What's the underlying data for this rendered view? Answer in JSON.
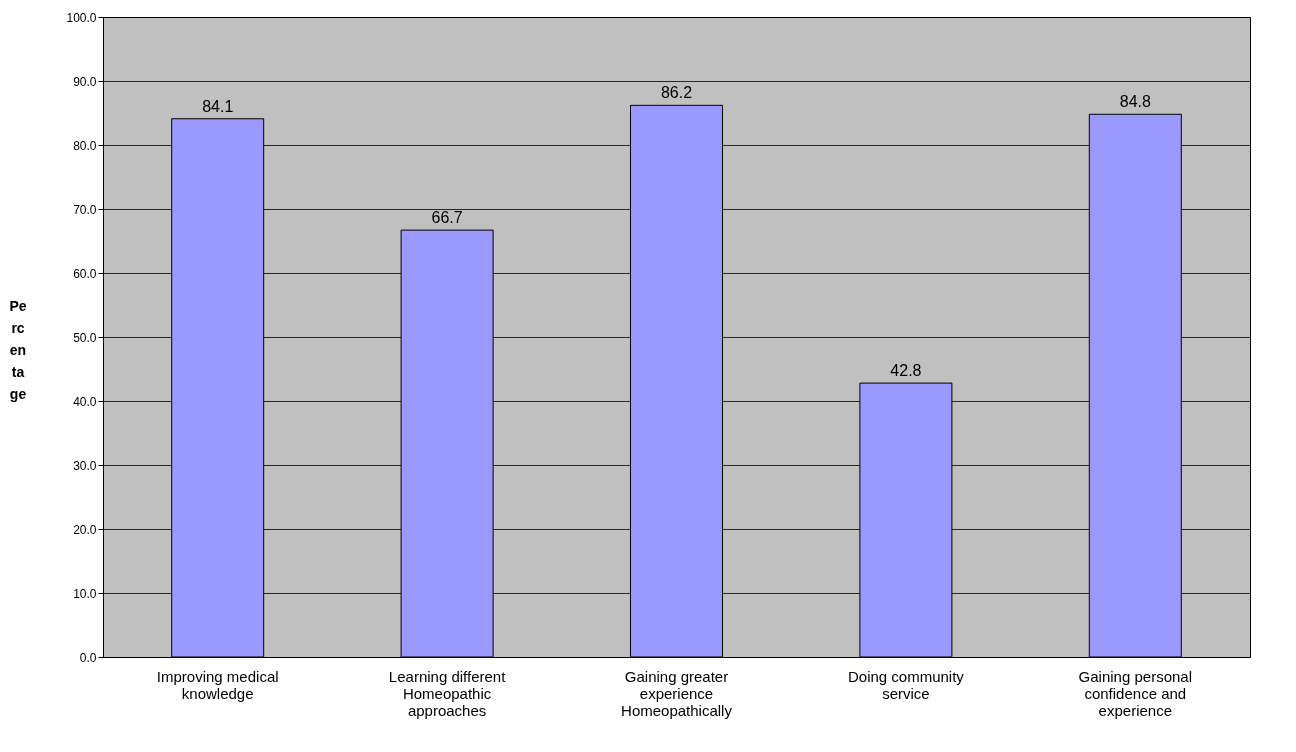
{
  "chart_data": {
    "type": "bar",
    "ylabel": "Percentage",
    "categories": [
      "Improving medical knowledge",
      "Learning different Homeopathic approaches",
      "Gaining greater experience Homeopathically",
      "Doing community service",
      "Gaining personal confidence and experience"
    ],
    "values": [
      84.1,
      66.7,
      86.2,
      42.8,
      84.8
    ],
    "color": "#9999ff",
    "ylim": [
      0,
      100
    ],
    "yticks": [
      {
        "value": 0,
        "label": "0.0"
      },
      {
        "value": 10,
        "label": "10.0"
      },
      {
        "value": 20,
        "label": "20.0"
      },
      {
        "value": 30,
        "label": "30.0"
      },
      {
        "value": 40,
        "label": "40.0"
      },
      {
        "value": 50,
        "label": "50.0"
      },
      {
        "value": 60,
        "label": "60.0"
      },
      {
        "value": 70,
        "label": "70.0"
      },
      {
        "value": 80,
        "label": "80.0"
      },
      {
        "value": 90,
        "label": "90.0"
      },
      {
        "value": 100,
        "label": "100.0"
      }
    ],
    "grid": "y",
    "data_labels": true
  }
}
